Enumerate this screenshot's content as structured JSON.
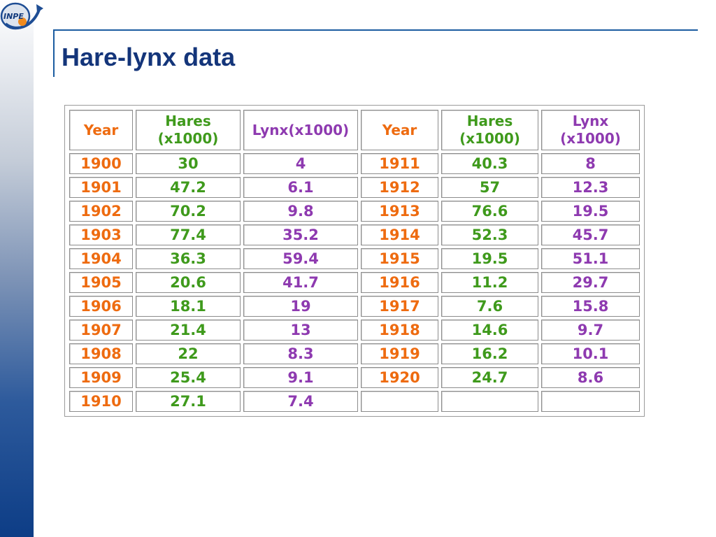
{
  "slide": {
    "title": "Hare-lynx data",
    "logo_text": "INPE"
  },
  "table": {
    "headers": [
      "Year",
      "Hares\n(x1000)",
      "Lynx(x1000)",
      "Year",
      "Hares\n(x1000)",
      "Lynx\n(x1000)"
    ],
    "rows": [
      [
        "1900",
        "30",
        "4",
        "1911",
        "40.3",
        "8"
      ],
      [
        "1901",
        "47.2",
        "6.1",
        "1912",
        "57",
        "12.3"
      ],
      [
        "1902",
        "70.2",
        "9.8",
        "1913",
        "76.6",
        "19.5"
      ],
      [
        "1903",
        "77.4",
        "35.2",
        "1914",
        "52.3",
        "45.7"
      ],
      [
        "1904",
        "36.3",
        "59.4",
        "1915",
        "19.5",
        "51.1"
      ],
      [
        "1905",
        "20.6",
        "41.7",
        "1916",
        "11.2",
        "29.7"
      ],
      [
        "1906",
        "18.1",
        "19",
        "1917",
        "7.6",
        "15.8"
      ],
      [
        "1907",
        "21.4",
        "13",
        "1918",
        "14.6",
        "9.7"
      ],
      [
        "1908",
        "22",
        "8.3",
        "1919",
        "16.2",
        "10.1"
      ],
      [
        "1909",
        "25.4",
        "9.1",
        "1920",
        "24.7",
        "8.6"
      ],
      [
        "1910",
        "27.1",
        "7.4",
        "",
        "",
        ""
      ]
    ]
  },
  "colors": {
    "year": "#ee6b10",
    "hares": "#3f9a1c",
    "lynx": "#8e3ab0",
    "title": "#14357a",
    "rule": "#1b5ca0"
  }
}
